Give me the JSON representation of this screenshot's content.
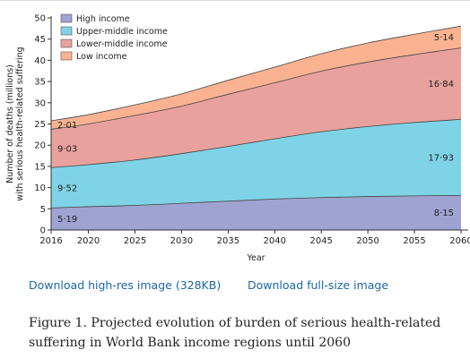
{
  "chart_data": {
    "type": "area",
    "stacked": true,
    "x": [
      2016,
      2020,
      2025,
      2030,
      2035,
      2040,
      2045,
      2050,
      2055,
      2060
    ],
    "xlabel": "Year",
    "ylabel": [
      "Number of deaths (millions)",
      "with serious health-related suffering"
    ],
    "xlim": [
      2016,
      2060
    ],
    "ylim": [
      0,
      50
    ],
    "xticks": [
      2016,
      2020,
      2025,
      2030,
      2035,
      2040,
      2045,
      2050,
      2055,
      2060
    ],
    "yticks": [
      0,
      5,
      10,
      15,
      20,
      25,
      30,
      35,
      40,
      45,
      50
    ],
    "grid": false,
    "legend": "top-left",
    "series": [
      {
        "name": "High income",
        "color": "#9fa3d2",
        "values": [
          5.19,
          5.5,
          5.8,
          6.3,
          6.8,
          7.3,
          7.65,
          7.9,
          8.05,
          8.15
        ],
        "start_label": "5·19",
        "end_label": "8·15"
      },
      {
        "name": "Upper-middle income",
        "color": "#7fd3e6",
        "values": [
          9.52,
          9.9,
          10.7,
          11.7,
          12.9,
          14.2,
          15.5,
          16.5,
          17.3,
          17.93
        ],
        "start_label": "9·52",
        "end_label": "17·93"
      },
      {
        "name": "Lower-middle income",
        "color": "#e9a19d",
        "values": [
          9.03,
          9.6,
          10.5,
          11.2,
          12.3,
          13.2,
          14.3,
          15.2,
          16.0,
          16.84
        ],
        "start_label": "9·03",
        "end_label": "16·84"
      },
      {
        "name": "Low income",
        "color": "#fbb291",
        "values": [
          2.01,
          2.2,
          2.5,
          2.9,
          3.3,
          3.7,
          4.1,
          4.5,
          4.8,
          5.14
        ],
        "start_label": "2·01",
        "end_label": "5·14"
      }
    ]
  },
  "links": {
    "high_res": "Download high-res image (328KB)",
    "full_size": "Download full-size image"
  },
  "caption": "Figure 1. Projected evolution of burden of serious health-related suffering in World Bank income regions until 2060"
}
